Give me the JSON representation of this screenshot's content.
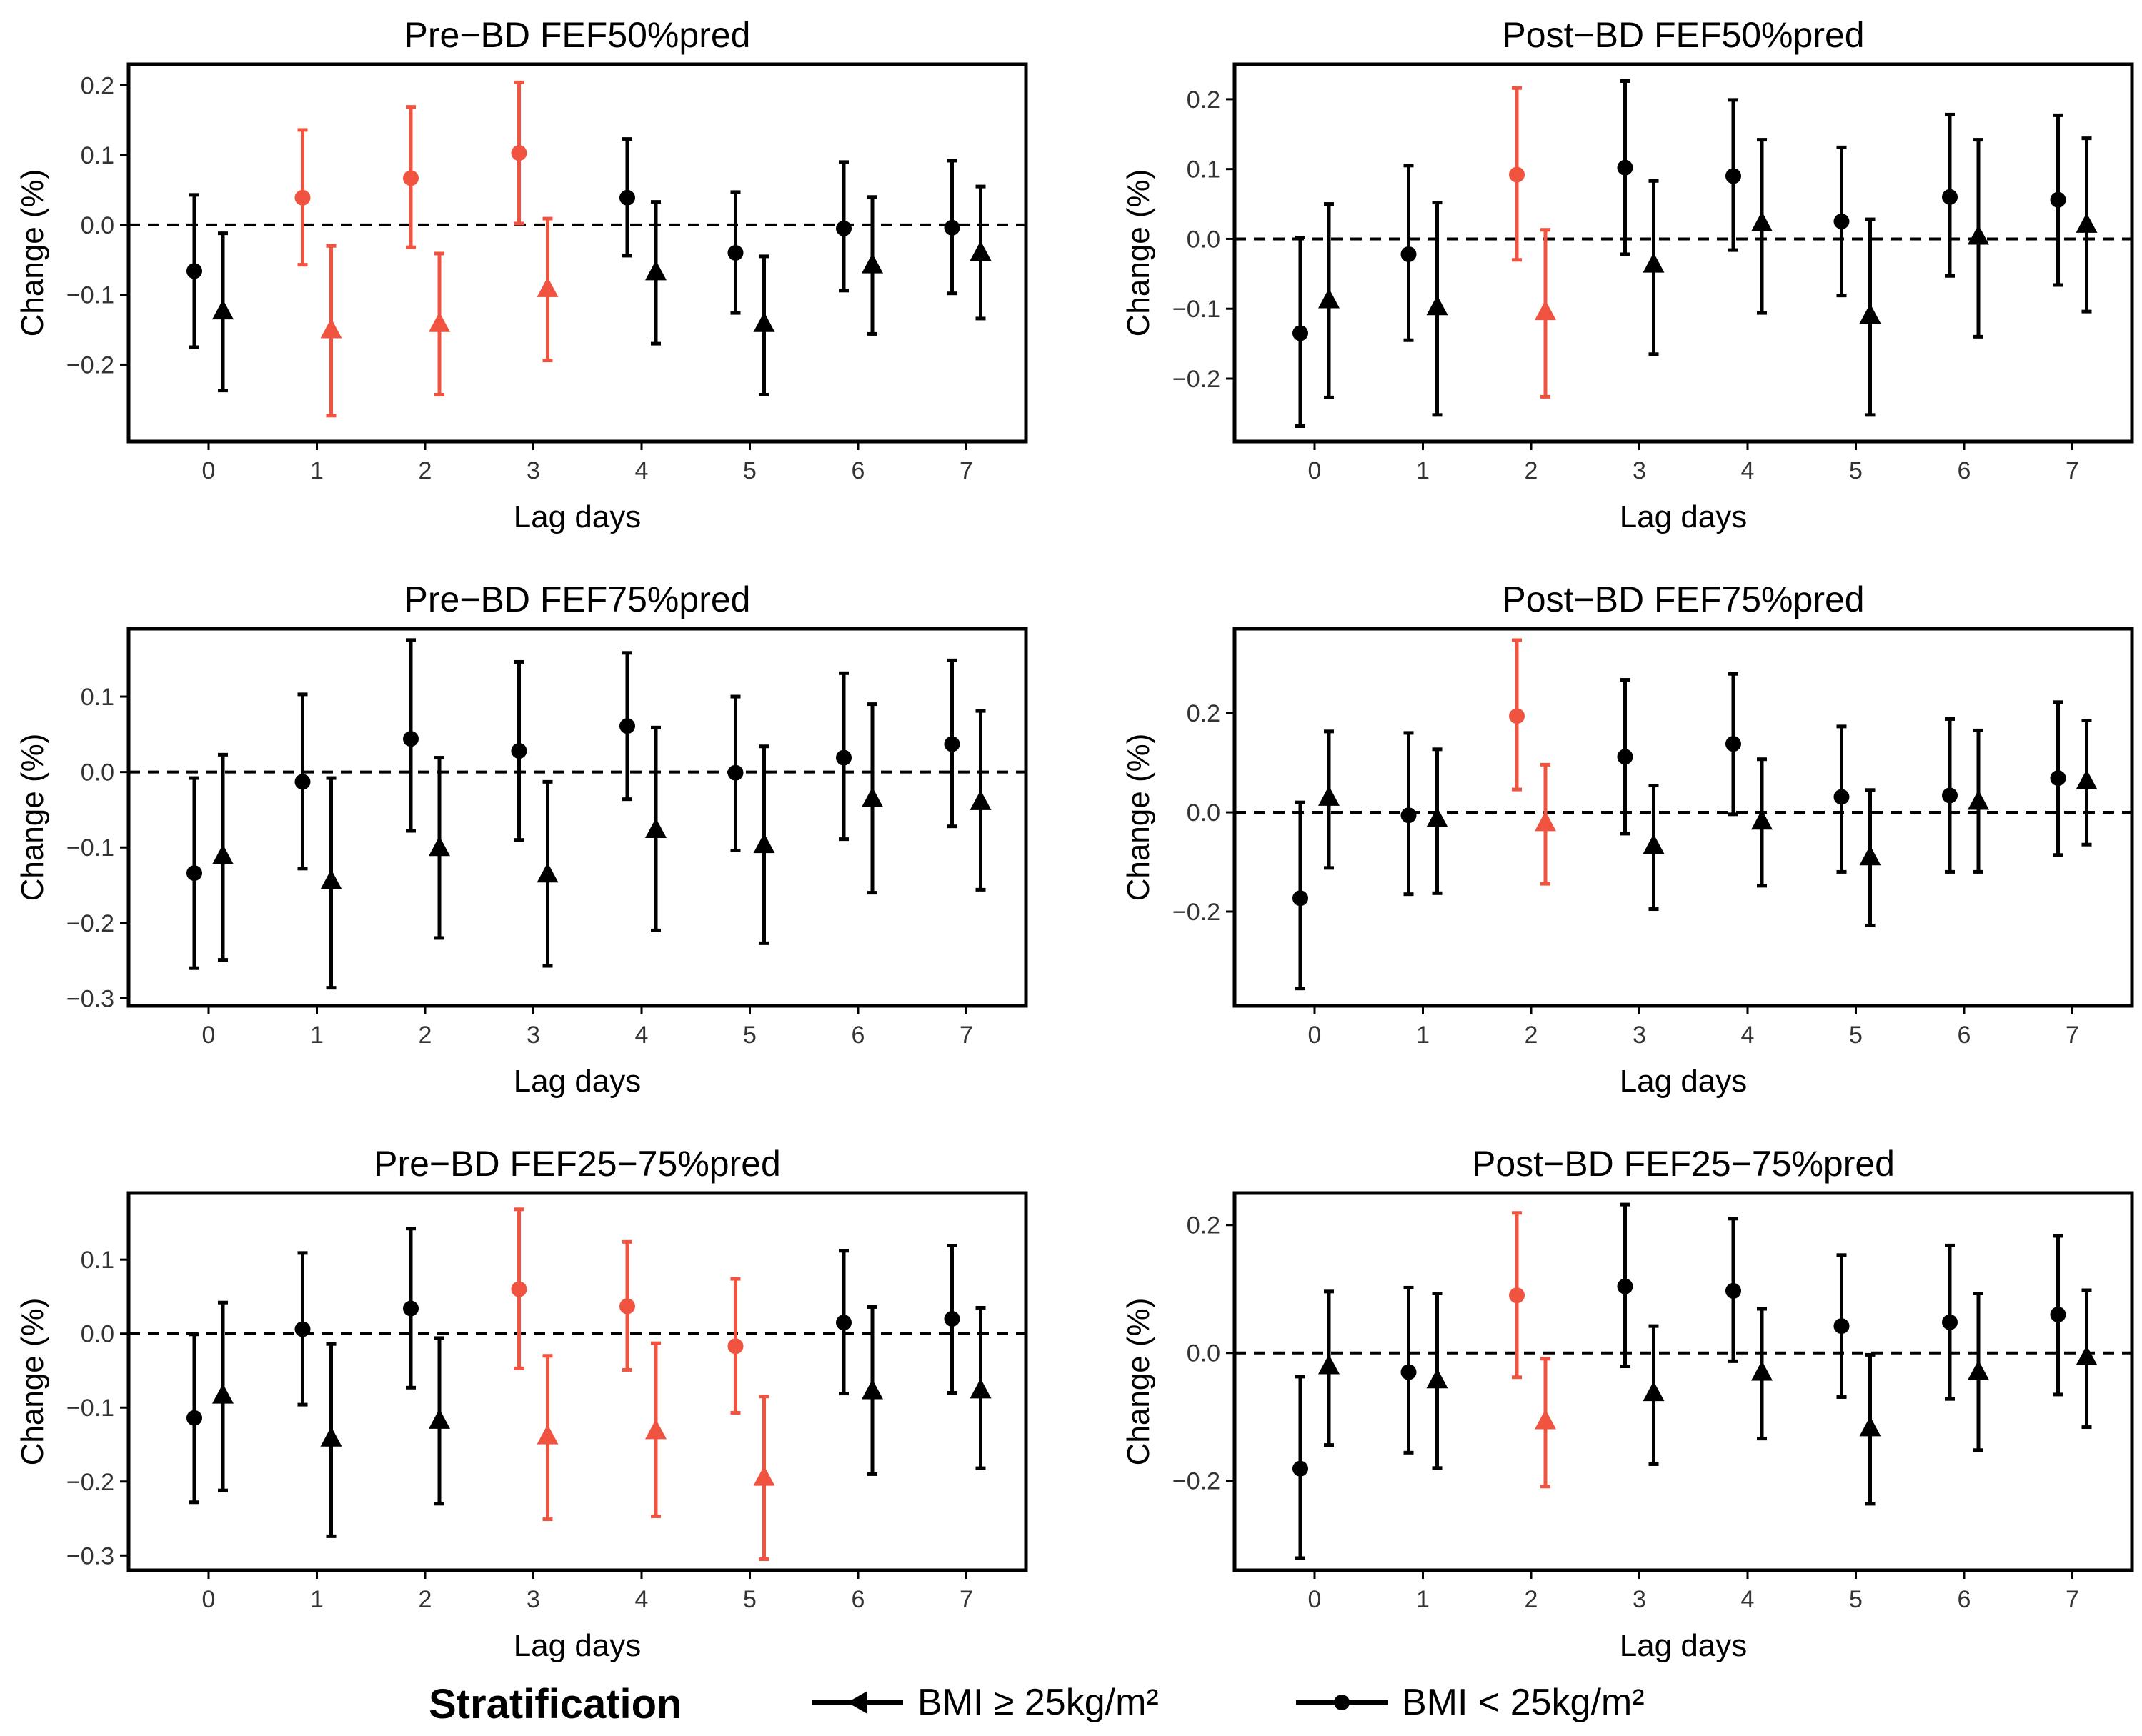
{
  "colors": {
    "significant": "#f05340",
    "normal": "#000000"
  },
  "legend": {
    "title": "Stratification",
    "items": [
      {
        "label": "BMI ≥ 25kg/m²",
        "marker": "triangle"
      },
      {
        "label": "BMI < 25kg/m²",
        "marker": "circle"
      }
    ]
  },
  "chart_data": [
    {
      "type": "scatter",
      "title": "Pre−BD FEF50%pred",
      "xlabel": "Lag days",
      "ylabel": "Change (%)",
      "categories": [
        0,
        1,
        2,
        3,
        4,
        5,
        6,
        7
      ],
      "ylim": [
        -0.31,
        0.23
      ],
      "yticks": [
        -0.2,
        -0.1,
        0.0,
        0.1,
        0.2
      ],
      "ytick_labels": [
        "−0.2",
        "−0.1",
        "0.0",
        "0.1",
        "0.2"
      ],
      "series": [
        {
          "name": "BMI < 25kg/m²",
          "marker": "circle",
          "values": [
            -0.066,
            0.039,
            0.067,
            0.103,
            0.039,
            -0.04,
            -0.005,
            -0.004
          ],
          "lower": [
            -0.175,
            -0.057,
            -0.032,
            0.002,
            -0.044,
            -0.126,
            -0.094,
            -0.098
          ],
          "upper": [
            0.043,
            0.136,
            0.169,
            0.204,
            0.123,
            0.047,
            0.09,
            0.092
          ],
          "significant": [
            false,
            true,
            true,
            true,
            false,
            false,
            false,
            false
          ]
        },
        {
          "name": "BMI ≥ 25kg/m²",
          "marker": "triangle",
          "values": [
            -0.124,
            -0.151,
            -0.142,
            -0.092,
            -0.068,
            -0.142,
            -0.058,
            -0.04
          ],
          "lower": [
            -0.237,
            -0.273,
            -0.243,
            -0.194,
            -0.17,
            -0.243,
            -0.156,
            -0.134
          ],
          "upper": [
            -0.012,
            -0.03,
            -0.041,
            0.009,
            0.033,
            -0.045,
            0.04,
            0.055
          ],
          "significant": [
            false,
            true,
            true,
            true,
            false,
            false,
            false,
            false
          ]
        }
      ]
    },
    {
      "type": "scatter",
      "title": "Post−BD FEF50%pred",
      "xlabel": "Lag days",
      "ylabel": "Change (%)",
      "categories": [
        0,
        1,
        2,
        3,
        4,
        5,
        6,
        7
      ],
      "ylim": [
        -0.29,
        0.25
      ],
      "yticks": [
        -0.2,
        -0.1,
        0.0,
        0.1,
        0.2
      ],
      "ytick_labels": [
        "−0.2",
        "−0.1",
        "0.0",
        "0.1",
        "0.2"
      ],
      "series": [
        {
          "name": "BMI < 25kg/m²",
          "marker": "circle",
          "values": [
            -0.135,
            -0.022,
            0.092,
            0.102,
            0.09,
            0.025,
            0.06,
            0.056
          ],
          "lower": [
            -0.268,
            -0.145,
            -0.03,
            -0.022,
            -0.016,
            -0.081,
            -0.053,
            -0.066
          ],
          "upper": [
            0.002,
            0.105,
            0.216,
            0.226,
            0.199,
            0.131,
            0.178,
            0.177
          ],
          "significant": [
            false,
            false,
            true,
            false,
            false,
            false,
            false,
            false
          ]
        },
        {
          "name": "BMI ≥ 25kg/m²",
          "marker": "triangle",
          "values": [
            -0.088,
            -0.098,
            -0.105,
            -0.037,
            0.022,
            -0.11,
            0.003,
            0.02
          ],
          "lower": [
            -0.227,
            -0.252,
            -0.226,
            -0.165,
            -0.106,
            -0.252,
            -0.14,
            -0.104
          ],
          "upper": [
            0.05,
            0.052,
            0.013,
            0.083,
            0.142,
            0.028,
            0.142,
            0.144
          ],
          "significant": [
            false,
            false,
            true,
            false,
            false,
            false,
            false,
            false
          ]
        }
      ]
    },
    {
      "type": "scatter",
      "title": "Pre−BD FEF75%pred",
      "xlabel": "Lag days",
      "ylabel": "Change (%)",
      "categories": [
        0,
        1,
        2,
        3,
        4,
        5,
        6,
        7
      ],
      "ylim": [
        -0.31,
        0.19
      ],
      "yticks": [
        -0.3,
        -0.2,
        -0.1,
        0.0,
        0.1
      ],
      "ytick_labels": [
        "−0.3",
        "−0.2",
        "−0.1",
        "0.0",
        "0.1"
      ],
      "series": [
        {
          "name": "BMI < 25kg/m²",
          "marker": "circle",
          "values": [
            -0.134,
            -0.013,
            0.044,
            0.028,
            0.061,
            -0.001,
            0.019,
            0.037
          ],
          "lower": [
            -0.26,
            -0.128,
            -0.078,
            -0.09,
            -0.036,
            -0.104,
            -0.089,
            -0.072
          ],
          "upper": [
            -0.008,
            0.103,
            0.175,
            0.146,
            0.158,
            0.1,
            0.131,
            0.148
          ],
          "significant": [
            false,
            false,
            false,
            false,
            false,
            false,
            false,
            false
          ]
        },
        {
          "name": "BMI ≥ 25kg/m²",
          "marker": "triangle",
          "values": [
            -0.112,
            -0.145,
            -0.101,
            -0.136,
            -0.077,
            -0.097,
            -0.036,
            -0.04
          ],
          "lower": [
            -0.249,
            -0.286,
            -0.22,
            -0.257,
            -0.21,
            -0.227,
            -0.16,
            -0.156
          ],
          "upper": [
            0.023,
            -0.008,
            0.019,
            -0.013,
            0.059,
            0.034,
            0.09,
            0.081
          ],
          "significant": [
            false,
            false,
            false,
            false,
            false,
            false,
            false,
            false
          ]
        }
      ]
    },
    {
      "type": "scatter",
      "title": "Post−BD FEF75%pred",
      "xlabel": "Lag days",
      "ylabel": "Change (%)",
      "categories": [
        0,
        1,
        2,
        3,
        4,
        5,
        6,
        7
      ],
      "ylim": [
        -0.39,
        0.37
      ],
      "yticks": [
        -0.2,
        0.0,
        0.2
      ],
      "ytick_labels": [
        "−0.2",
        "0.0",
        "0.2"
      ],
      "series": [
        {
          "name": "BMI < 25kg/m²",
          "marker": "circle",
          "values": [
            -0.173,
            -0.006,
            0.194,
            0.112,
            0.138,
            0.031,
            0.034,
            0.069
          ],
          "lower": [
            -0.355,
            -0.165,
            0.046,
            -0.043,
            -0.004,
            -0.12,
            -0.12,
            -0.086
          ],
          "upper": [
            0.02,
            0.16,
            0.347,
            0.267,
            0.279,
            0.173,
            0.188,
            0.222
          ],
          "significant": [
            false,
            false,
            true,
            false,
            false,
            false,
            false,
            false
          ]
        },
        {
          "name": "BMI ≥ 25kg/m²",
          "marker": "triangle",
          "values": [
            0.029,
            -0.014,
            -0.022,
            -0.068,
            -0.019,
            -0.091,
            0.021,
            0.062
          ],
          "lower": [
            -0.112,
            -0.163,
            -0.144,
            -0.195,
            -0.148,
            -0.228,
            -0.12,
            -0.065
          ],
          "upper": [
            0.163,
            0.127,
            0.096,
            0.054,
            0.107,
            0.045,
            0.165,
            0.185
          ],
          "significant": [
            false,
            false,
            true,
            false,
            false,
            false,
            false,
            false
          ]
        }
      ]
    },
    {
      "type": "scatter",
      "title": "Pre−BD FEF25−75%pred",
      "xlabel": "Lag days",
      "ylabel": "Change (%)",
      "categories": [
        0,
        1,
        2,
        3,
        4,
        5,
        6,
        7
      ],
      "ylim": [
        -0.32,
        0.19
      ],
      "yticks": [
        -0.3,
        -0.2,
        -0.1,
        0.0,
        0.1
      ],
      "ytick_labels": [
        "−0.3",
        "−0.2",
        "−0.1",
        "0.0",
        "0.1"
      ],
      "series": [
        {
          "name": "BMI < 25kg/m²",
          "marker": "circle",
          "values": [
            -0.114,
            0.006,
            0.034,
            0.06,
            0.037,
            -0.017,
            0.015,
            0.02
          ],
          "lower": [
            -0.228,
            -0.096,
            -0.073,
            -0.047,
            -0.049,
            -0.107,
            -0.081,
            -0.08
          ],
          "upper": [
            -0.001,
            0.109,
            0.142,
            0.168,
            0.124,
            0.074,
            0.112,
            0.119
          ],
          "significant": [
            false,
            false,
            false,
            true,
            true,
            true,
            false,
            false
          ]
        },
        {
          "name": "BMI ≥ 25kg/m²",
          "marker": "triangle",
          "values": [
            -0.084,
            -0.142,
            -0.118,
            -0.139,
            -0.132,
            -0.195,
            -0.078,
            -0.077
          ],
          "lower": [
            -0.212,
            -0.274,
            -0.23,
            -0.251,
            -0.247,
            -0.305,
            -0.19,
            -0.182
          ],
          "upper": [
            0.042,
            -0.014,
            -0.006,
            -0.03,
            -0.013,
            -0.085,
            0.036,
            0.035
          ],
          "significant": [
            false,
            false,
            false,
            true,
            true,
            true,
            false,
            false
          ]
        }
      ]
    },
    {
      "type": "scatter",
      "title": "Post−BD FEF25−75%pred",
      "xlabel": "Lag days",
      "ylabel": "Change (%)",
      "categories": [
        0,
        1,
        2,
        3,
        4,
        5,
        6,
        7
      ],
      "ylim": [
        -0.34,
        0.25
      ],
      "yticks": [
        -0.2,
        0.0,
        0.2
      ],
      "ytick_labels": [
        "−0.2",
        "0.0",
        "0.2"
      ],
      "series": [
        {
          "name": "BMI < 25kg/m²",
          "marker": "circle",
          "values": [
            -0.181,
            -0.03,
            0.09,
            0.104,
            0.097,
            0.042,
            0.048,
            0.06
          ],
          "lower": [
            -0.321,
            -0.156,
            -0.038,
            -0.021,
            -0.013,
            -0.069,
            -0.072,
            -0.065
          ],
          "upper": [
            -0.037,
            0.102,
            0.219,
            0.232,
            0.21,
            0.153,
            0.168,
            0.183
          ],
          "significant": [
            false,
            false,
            true,
            false,
            false,
            false,
            false,
            false
          ]
        },
        {
          "name": "BMI ≥ 25kg/m²",
          "marker": "triangle",
          "values": [
            -0.021,
            -0.043,
            -0.107,
            -0.063,
            -0.031,
            -0.118,
            -0.03,
            -0.007
          ],
          "lower": [
            -0.144,
            -0.18,
            -0.209,
            -0.174,
            -0.134,
            -0.236,
            -0.152,
            -0.116
          ],
          "upper": [
            0.096,
            0.093,
            -0.009,
            0.042,
            0.069,
            -0.003,
            0.093,
            0.098
          ],
          "significant": [
            false,
            false,
            true,
            false,
            false,
            false,
            false,
            false
          ]
        }
      ]
    }
  ]
}
